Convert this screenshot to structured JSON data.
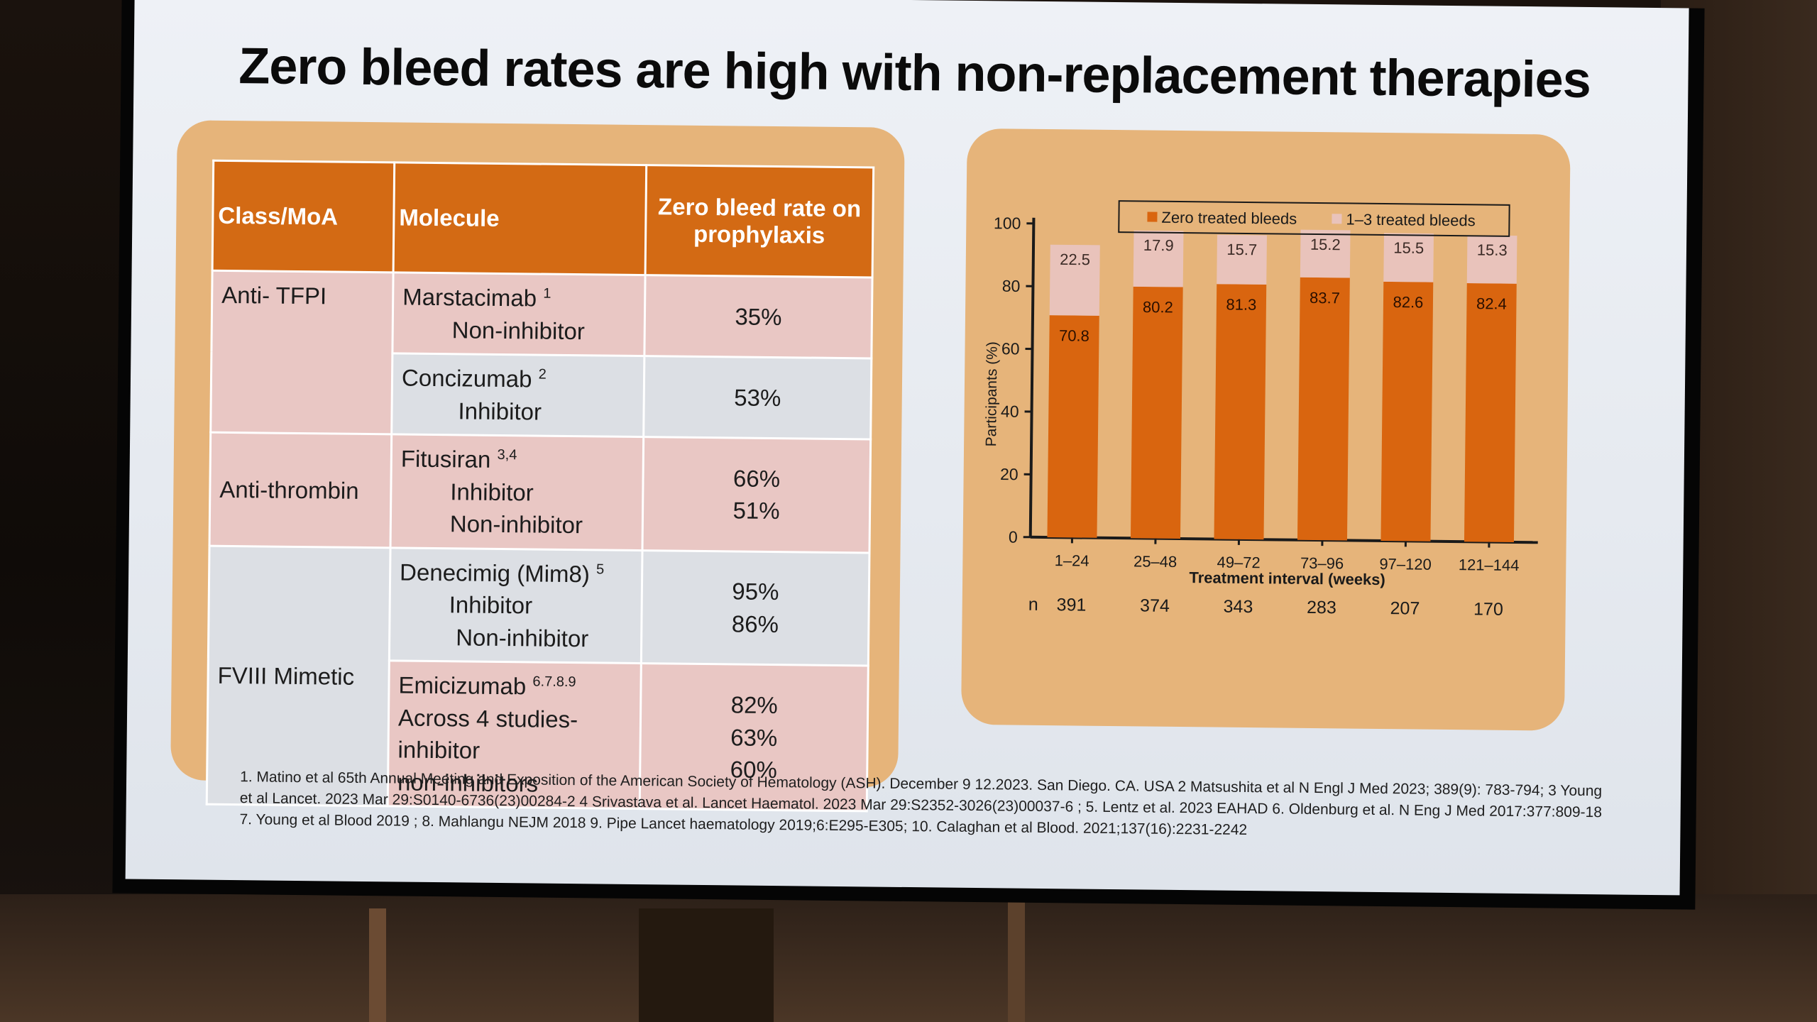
{
  "slide": {
    "title": "Zero bleed rates are high with non-replacement therapies",
    "references": "1. Matino et al 65th Annual Meeting and Exposition of the American Society of Hematology (ASH). December 9 12.2023. San Diego. CA. USA 2 Matsushita et al N Engl J Med 2023; 389(9): 783-794; 3 Young et al Lancet. 2023 Mar 29:S0140-6736(23)00284-2 4 Srivastava et al. Lancet Haematol. 2023 Mar 29:S2352-3026(23)00037-6 ; 5. Lentz et al. 2023 EAHAD 6. Oldenburg et al. N Eng J Med 2017:377:809-18 7. Young et al Blood 2019 ; 8. Mahlangu NEJM 2018 9. Pipe Lancet haematology 2019;6:E295-E305; 10. Calaghan et al Blood. 2021;137(16):2231-2242"
  },
  "table": {
    "headers": [
      "Class/MoA",
      "Molecule",
      "Zero bleed rate on prophylaxis"
    ],
    "groups": {
      "anti_tfpi": "Anti- TFPI",
      "anti_thrombin": "Anti-thrombin",
      "fviii_mimetic": "FVIII Mimetic"
    },
    "rows": {
      "marstacimab": {
        "name": "Marstacimab",
        "ref": "1",
        "sub": [
          "Non-inhibitor"
        ],
        "rates": [
          "35%"
        ]
      },
      "concizumab": {
        "name": "Concizumab",
        "ref": "2",
        "sub": [
          "Inhibitor"
        ],
        "rates": [
          "53%"
        ]
      },
      "fitusiran": {
        "name": "Fitusiran",
        "ref": "3,4",
        "sub": [
          "Inhibitor",
          "Non-inhibitor"
        ],
        "rates": [
          "66%",
          "51%"
        ]
      },
      "denecimig": {
        "name": "Denecimig (Mim8)",
        "ref": "5",
        "sub": [
          "Inhibitor",
          "Non-inhibitor"
        ],
        "rates": [
          "95%",
          "86%"
        ]
      },
      "emicizumab": {
        "name": "Emicizumab",
        "ref": "6.7.8.9",
        "sub": [
          "Across 4 studies-",
          "inhibitor",
          "non-inhibitors"
        ],
        "rates": [
          "82%",
          "63%",
          "60%"
        ]
      }
    }
  },
  "chart_data": {
    "type": "bar",
    "stacked": true,
    "categories": [
      "1–24",
      "25–48",
      "49–72",
      "73–96",
      "97–120",
      "121–144"
    ],
    "series": [
      {
        "name": "Zero treated bleeds",
        "values": [
          70.8,
          80.2,
          81.3,
          83.7,
          82.6,
          82.4
        ],
        "color": "#d9650f"
      },
      {
        "name": "1–3 treated bleeds",
        "values": [
          22.5,
          17.9,
          15.7,
          15.2,
          15.5,
          15.3
        ],
        "color": "#e9c3bb"
      }
    ],
    "xlabel": "Treatment interval (weeks)",
    "ylabel": "Participants (%)",
    "ylim": [
      0,
      100
    ],
    "yticks": [
      0,
      20,
      40,
      60,
      80,
      100
    ],
    "grid": false,
    "legend": "top",
    "n_label": "n",
    "n_values": [
      "391",
      "374",
      "343",
      "283",
      "207",
      "170"
    ]
  }
}
